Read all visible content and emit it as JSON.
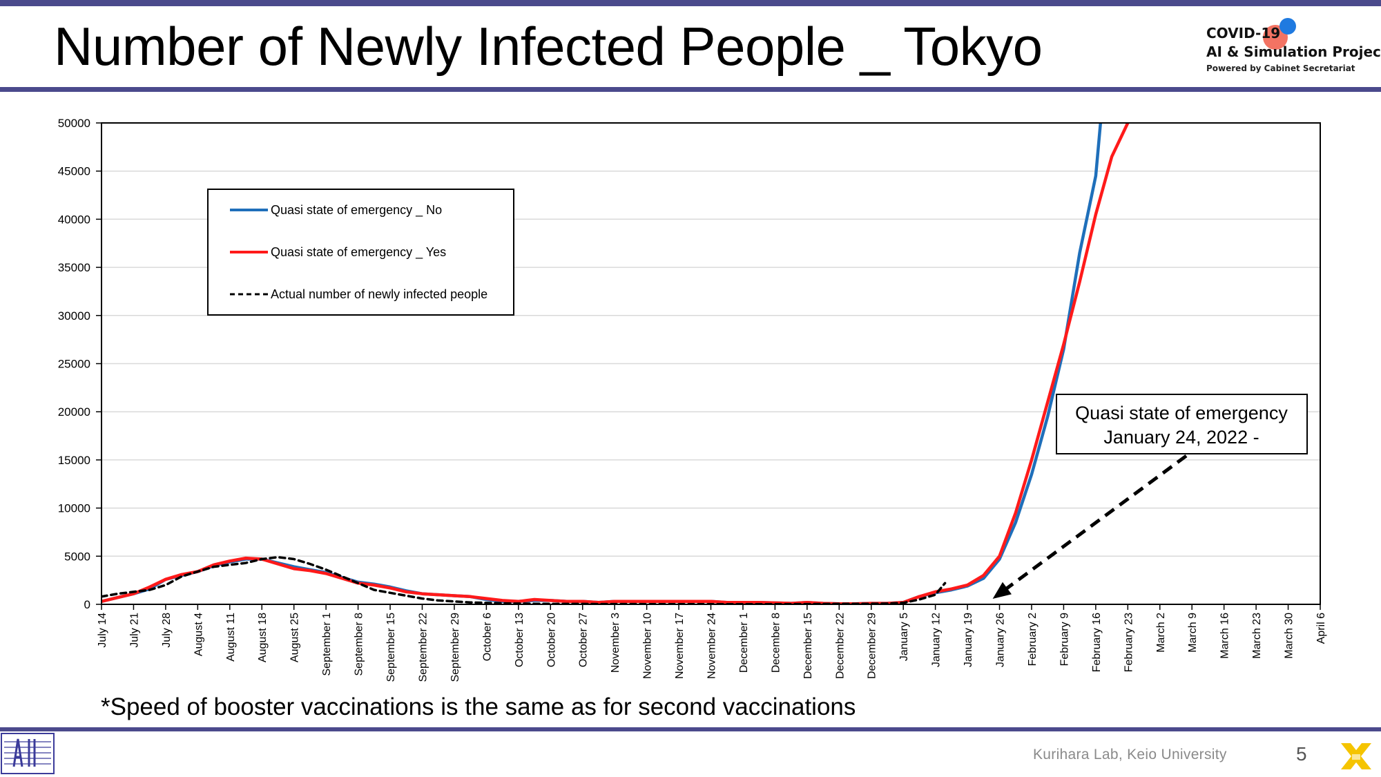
{
  "slide": {
    "title": "Number of Newly Infected People _ Tokyo",
    "footnote": "*Speed of booster vaccinations is the same as for second vaccinations",
    "footer_lab": "Kurihara Lab, Keio University",
    "page_number": "5"
  },
  "logo": {
    "line1": "COVID-19",
    "line2": "AI & Simulation Project",
    "line3": "Powered by Cabinet Secretariat"
  },
  "colors": {
    "accent_bar": "#4b4a8c",
    "series_no": "#1f6fba",
    "series_yes": "#ff1a1a",
    "actual": "#000000",
    "grid": "#d9d9d9"
  },
  "chart_data": {
    "type": "line",
    "title": "",
    "xlabel": "",
    "ylabel": "",
    "ylim": [
      0,
      50000
    ],
    "yticks": [
      0,
      5000,
      10000,
      15000,
      20000,
      25000,
      30000,
      35000,
      40000,
      45000,
      50000
    ],
    "grid": true,
    "legend_position": "upper-left",
    "categories": [
      "July 14",
      "July 21",
      "July 28",
      "August 4",
      "August 11",
      "August 18",
      "August 25",
      "September 1",
      "September 8",
      "September 15",
      "September 22",
      "September 29",
      "October 6",
      "October 13",
      "October 20",
      "October 27",
      "November 3",
      "November 10",
      "November 17",
      "November 24",
      "December 1",
      "December 8",
      "December 15",
      "December 22",
      "December 29",
      "January 5",
      "January 12",
      "January 19",
      "January 26",
      "February 2",
      "February 9",
      "February 16",
      "February 23",
      "March 2",
      "March 9",
      "March 16",
      "March 23",
      "March 30",
      "April 6"
    ],
    "series": [
      {
        "name": "Quasi state of emergency _ No",
        "color": "#1f6fba",
        "points": [
          [
            0,
            300
          ],
          [
            0.5,
            700
          ],
          [
            1,
            1100
          ],
          [
            1.5,
            1600
          ],
          [
            2,
            2600
          ],
          [
            2.5,
            3000
          ],
          [
            3,
            3400
          ],
          [
            3.5,
            4000
          ],
          [
            4,
            4400
          ],
          [
            4.5,
            4700
          ],
          [
            5,
            4700
          ],
          [
            5.5,
            4300
          ],
          [
            6,
            3900
          ],
          [
            6.5,
            3600
          ],
          [
            7,
            3300
          ],
          [
            7.5,
            2800
          ],
          [
            8,
            2300
          ],
          [
            8.5,
            2100
          ],
          [
            9,
            1800
          ],
          [
            9.5,
            1400
          ],
          [
            10,
            1100
          ],
          [
            10.5,
            1000
          ],
          [
            11,
            900
          ],
          [
            11.5,
            800
          ],
          [
            12,
            500
          ],
          [
            12.5,
            300
          ],
          [
            13,
            300
          ],
          [
            13.5,
            400
          ],
          [
            14,
            400
          ],
          [
            14.5,
            300
          ],
          [
            15,
            300
          ],
          [
            15.5,
            200
          ],
          [
            16,
            300
          ],
          [
            16.5,
            300
          ],
          [
            17,
            300
          ],
          [
            17.5,
            300
          ],
          [
            18,
            300
          ],
          [
            18.5,
            300
          ],
          [
            19,
            300
          ],
          [
            19.5,
            200
          ],
          [
            20,
            200
          ],
          [
            20.5,
            200
          ],
          [
            21,
            150
          ],
          [
            21.5,
            100
          ],
          [
            22,
            200
          ],
          [
            22.5,
            100
          ],
          [
            23,
            50
          ],
          [
            23.5,
            50
          ],
          [
            24,
            100
          ],
          [
            24.5,
            100
          ],
          [
            25,
            200
          ],
          [
            25.5,
            800
          ],
          [
            26,
            1200
          ],
          [
            26.5,
            1500
          ],
          [
            27,
            1900
          ],
          [
            27.5,
            2700
          ],
          [
            28,
            4700
          ],
          [
            28.5,
            8500
          ],
          [
            29,
            13500
          ],
          [
            29.5,
            19500
          ],
          [
            30,
            26500
          ],
          [
            30.5,
            36500
          ],
          [
            31,
            44500
          ],
          [
            31.15,
            50000
          ]
        ]
      },
      {
        "name": "Quasi state of emergency _ Yes",
        "color": "#ff1a1a",
        "points": [
          [
            0,
            300
          ],
          [
            0.5,
            700
          ],
          [
            1,
            1100
          ],
          [
            1.5,
            1800
          ],
          [
            2,
            2600
          ],
          [
            2.5,
            3100
          ],
          [
            3,
            3400
          ],
          [
            3.5,
            4100
          ],
          [
            4,
            4500
          ],
          [
            4.5,
            4800
          ],
          [
            5,
            4700
          ],
          [
            5.5,
            4200
          ],
          [
            6,
            3700
          ],
          [
            6.5,
            3500
          ],
          [
            7,
            3200
          ],
          [
            7.5,
            2700
          ],
          [
            8,
            2200
          ],
          [
            8.5,
            2000
          ],
          [
            9,
            1700
          ],
          [
            9.5,
            1300
          ],
          [
            10,
            1100
          ],
          [
            10.5,
            1000
          ],
          [
            11,
            900
          ],
          [
            11.5,
            800
          ],
          [
            12,
            600
          ],
          [
            12.5,
            400
          ],
          [
            13,
            300
          ],
          [
            13.5,
            500
          ],
          [
            14,
            400
          ],
          [
            14.5,
            300
          ],
          [
            15,
            300
          ],
          [
            15.5,
            200
          ],
          [
            16,
            300
          ],
          [
            16.5,
            300
          ],
          [
            17,
            300
          ],
          [
            17.5,
            300
          ],
          [
            18,
            300
          ],
          [
            18.5,
            300
          ],
          [
            19,
            300
          ],
          [
            19.5,
            200
          ],
          [
            20,
            200
          ],
          [
            20.5,
            200
          ],
          [
            21,
            150
          ],
          [
            21.5,
            100
          ],
          [
            22,
            200
          ],
          [
            22.5,
            100
          ],
          [
            23,
            50
          ],
          [
            23.5,
            50
          ],
          [
            24,
            100
          ],
          [
            24.5,
            100
          ],
          [
            25,
            200
          ],
          [
            25.5,
            800
          ],
          [
            26,
            1300
          ],
          [
            26.5,
            1600
          ],
          [
            27,
            2000
          ],
          [
            27.5,
            3000
          ],
          [
            28,
            5000
          ],
          [
            28.5,
            9500
          ],
          [
            29,
            15000
          ],
          [
            29.5,
            21000
          ],
          [
            30,
            27000
          ],
          [
            30.5,
            33500
          ],
          [
            31,
            40500
          ],
          [
            31.5,
            46500
          ],
          [
            32,
            50000
          ]
        ]
      },
      {
        "name": "Actual number of newly infected people",
        "color": "#000000",
        "dashed": true,
        "points": [
          [
            0,
            800
          ],
          [
            0.5,
            1100
          ],
          [
            1,
            1300
          ],
          [
            1.5,
            1500
          ],
          [
            2,
            2000
          ],
          [
            2.5,
            2900
          ],
          [
            3,
            3400
          ],
          [
            3.5,
            3900
          ],
          [
            4,
            4100
          ],
          [
            4.5,
            4300
          ],
          [
            5,
            4700
          ],
          [
            5.5,
            4900
          ],
          [
            6,
            4700
          ],
          [
            6.5,
            4200
          ],
          [
            7,
            3600
          ],
          [
            7.5,
            2900
          ],
          [
            8,
            2200
          ],
          [
            8.5,
            1500
          ],
          [
            9,
            1200
          ],
          [
            9.5,
            900
          ],
          [
            10,
            600
          ],
          [
            10.5,
            400
          ],
          [
            11,
            300
          ],
          [
            11.5,
            200
          ],
          [
            12,
            150
          ],
          [
            12.5,
            100
          ],
          [
            13,
            80
          ],
          [
            13.5,
            60
          ],
          [
            14,
            50
          ],
          [
            14.5,
            40
          ],
          [
            15,
            40
          ],
          [
            15.5,
            30
          ],
          [
            16,
            30
          ],
          [
            16.5,
            30
          ],
          [
            17,
            20
          ],
          [
            17.5,
            20
          ],
          [
            18,
            20
          ],
          [
            18.5,
            20
          ],
          [
            19,
            20
          ],
          [
            19.5,
            20
          ],
          [
            20,
            20
          ],
          [
            20.5,
            20
          ],
          [
            21,
            20
          ],
          [
            21.5,
            20
          ],
          [
            22,
            30
          ],
          [
            22.5,
            40
          ],
          [
            23,
            50
          ],
          [
            23.5,
            50
          ],
          [
            24,
            60
          ],
          [
            24.5,
            80
          ],
          [
            25,
            150
          ],
          [
            25.5,
            500
          ],
          [
            26,
            1000
          ],
          [
            26.3,
            2200
          ]
        ]
      }
    ],
    "annotation": {
      "line1": "Quasi state of emergency",
      "line2": "January 24, 2022 -",
      "arrow_to_x": 27.7
    }
  }
}
